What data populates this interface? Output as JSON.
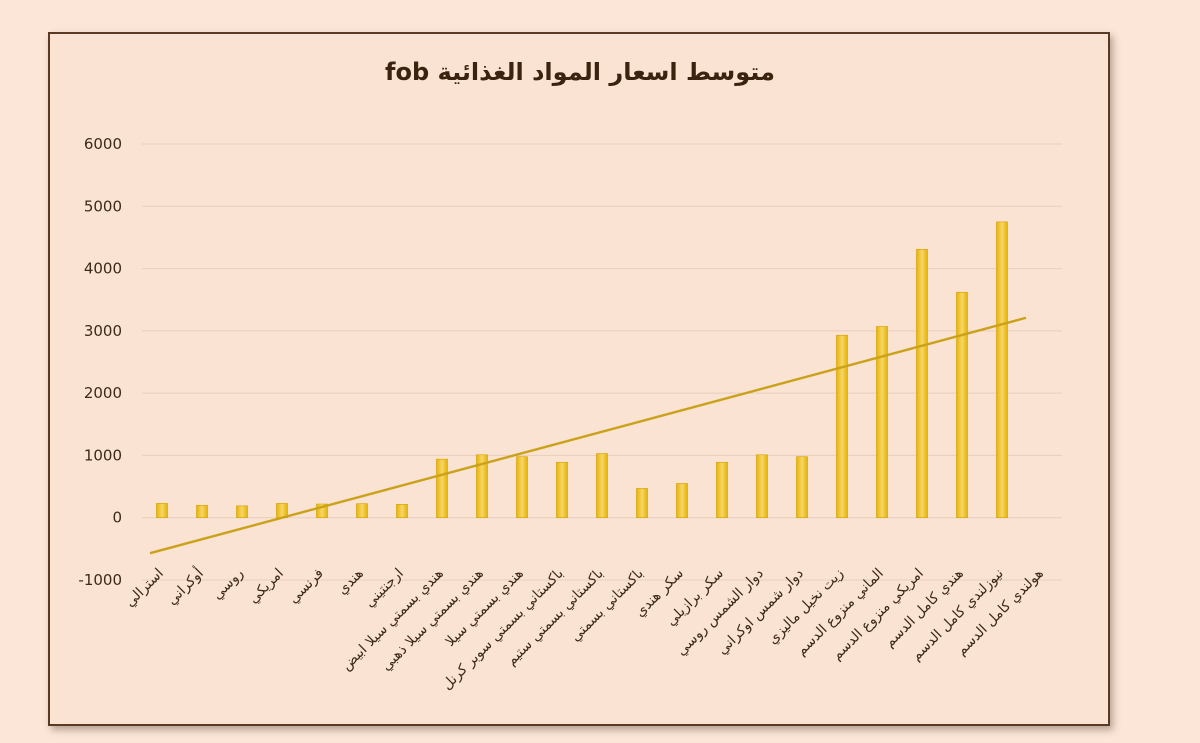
{
  "colors": {
    "bar": "#e8b200",
    "bar_light": "#f6d66a",
    "trend": "#caa21a",
    "background": "#fbe3d3",
    "frame": "#5a3a24"
  },
  "chart_data": {
    "type": "bar",
    "title": "متوسط اسعار المواد الغذائية fob",
    "xlabel": "",
    "ylabel": "",
    "ylim": [
      -1000,
      6000
    ],
    "yticks": [
      6000,
      5000,
      4000,
      3000,
      2000,
      1000,
      0,
      -1000
    ],
    "grid": true,
    "legend": "none",
    "categories": [
      "استرالي",
      "أوكراني",
      "روسي",
      "امريكي",
      "فرنسي",
      "هندي",
      "ارجنتيني",
      "هندي بسمتي سيلا ابيض",
      "هندي بسمتي سيلا ذهبي",
      "هندي بسمتي سيلا",
      "باكستاني بسمتي سوبر كرنل",
      "باكستاني بسمتي ستيم",
      "باكستاني بسمتي",
      "سكر هندي",
      "سكر برازيلي",
      "دوار الشمس روسي",
      "دوار شمس اوكراني",
      "زيت نخيل ماليزي",
      "الماني منزوع الدسم",
      "امريكي منزوع الدسم",
      "هندي كامل الدسم",
      "نيوزلندي كامل الدسم",
      "هولندي كامل الدسم"
    ],
    "series": [
      {
        "values": [
          230,
          200,
          190,
          230,
          220,
          225,
          215,
          940,
          1010,
          980,
          890,
          1030,
          470,
          550,
          890,
          1010,
          980,
          2930,
          3070,
          4310,
          3620,
          4750,
          0
        ]
      }
    ],
    "trendline": {
      "type": "linear",
      "start_value": -570,
      "end_value": 3210
    }
  }
}
